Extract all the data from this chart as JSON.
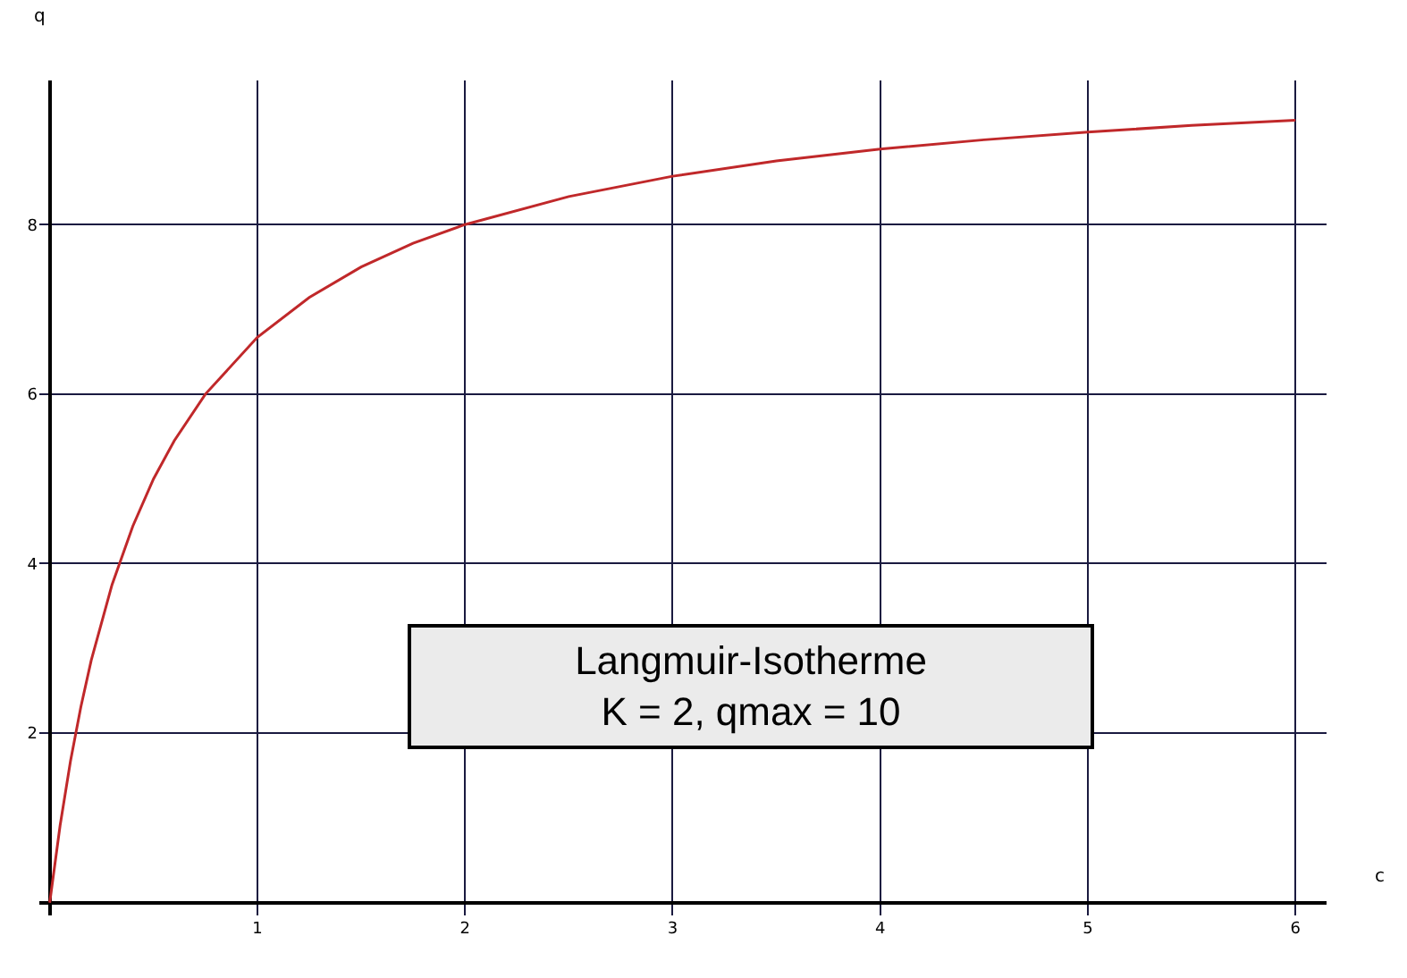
{
  "chart_data": {
    "type": "line",
    "xlabel": "c",
    "ylabel": "q",
    "annotations": [
      "Langmuir-Isotherme\nK = 2, qmax = 10"
    ],
    "x": [
      0,
      0.05,
      0.1,
      0.15,
      0.2,
      0.3,
      0.4,
      0.5,
      0.6,
      0.75,
      1,
      1.25,
      1.5,
      1.75,
      2,
      2.5,
      3,
      3.5,
      4,
      4.5,
      5,
      5.5,
      6
    ],
    "series": [
      {
        "color": "#c0282a",
        "values": [
          0,
          0.91,
          1.67,
          2.31,
          2.86,
          3.75,
          4.44,
          5.0,
          5.45,
          6.0,
          6.67,
          7.14,
          7.5,
          7.78,
          8.0,
          8.33,
          8.57,
          8.75,
          8.89,
          9.0,
          9.09,
          9.17,
          9.23
        ]
      }
    ],
    "xlim": [
      -0.05,
      6.15
    ],
    "ylim": [
      -0.15,
      9.7
    ],
    "xticks": [
      1,
      2,
      3,
      4,
      5,
      6
    ],
    "yticks": [
      2,
      4,
      6,
      8
    ],
    "grid": true,
    "legend": false,
    "marker": "none",
    "line_style": "solid"
  }
}
